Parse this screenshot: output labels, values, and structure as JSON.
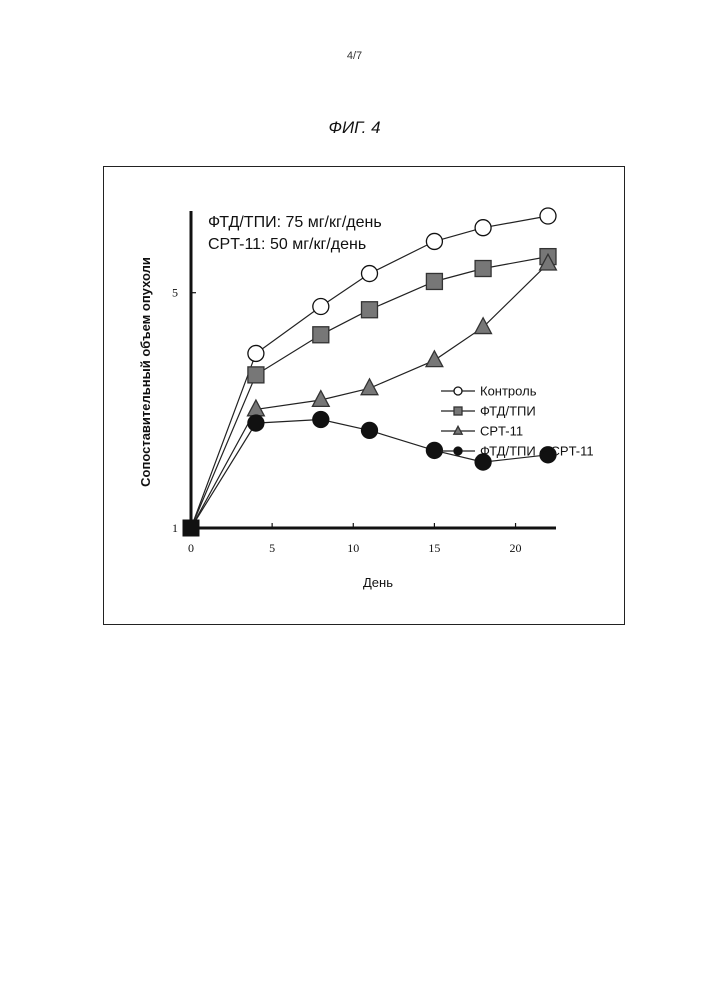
{
  "page": {
    "number": "4/7",
    "figure_title": "ФИГ. 4"
  },
  "chart_data": {
    "type": "line",
    "annotations": [
      "ФТД/ТПИ: 75 мг/кг/день",
      "CPT-11: 50 мг/кг/день"
    ],
    "xlabel": "День",
    "ylabel": "Сопоставительный объем опухоли",
    "xlim": [
      0,
      22
    ],
    "ylim": [
      1,
      8
    ],
    "x_ticks": [
      0,
      5,
      10,
      15,
      20
    ],
    "x_tick_labels": [
      "0",
      "5",
      "10",
      "15",
      "20"
    ],
    "y_ticks": [
      1,
      5
    ],
    "y_tick_labels": [
      "1",
      "5"
    ],
    "y_scale": "log",
    "legend_position": "right",
    "x": [
      0,
      4,
      8,
      11,
      15,
      18,
      22
    ],
    "series": [
      {
        "name": "Контроль",
        "marker": "circle-open",
        "fill": "#ffffff",
        "values": [
          1,
          3.3,
          4.55,
          5.7,
          7.1,
          7.8,
          8.45
        ]
      },
      {
        "name": "ФТД/ТПИ",
        "marker": "square",
        "fill": "#777777",
        "values": [
          1,
          2.85,
          3.75,
          4.45,
          5.4,
          5.9,
          6.4
        ]
      },
      {
        "name": "CPT-11",
        "marker": "triangle",
        "fill": "#777777",
        "values": [
          1,
          2.25,
          2.4,
          2.6,
          3.15,
          3.95,
          6.1
        ]
      },
      {
        "name": "ФТД/ТПИ + CPT-11",
        "marker": "circle-filled",
        "fill": "#111111",
        "values": [
          1,
          2.05,
          2.1,
          1.95,
          1.7,
          1.57,
          1.65
        ]
      }
    ]
  }
}
